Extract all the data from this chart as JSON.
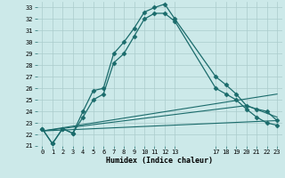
{
  "xlabel": "Humidex (Indice chaleur)",
  "bg_color": "#cce9e9",
  "grid_color": "#aacccc",
  "line_color": "#1a6b6b",
  "xlim": [
    -0.5,
    23.5
  ],
  "ylim": [
    21,
    33.5
  ],
  "yticks": [
    21,
    22,
    23,
    24,
    25,
    26,
    27,
    28,
    29,
    30,
    31,
    32,
    33
  ],
  "xticks": [
    0,
    1,
    2,
    3,
    4,
    5,
    6,
    7,
    8,
    9,
    10,
    11,
    12,
    13,
    17,
    18,
    19,
    20,
    21,
    22,
    23
  ],
  "series": [
    {
      "x": [
        0,
        1,
        2,
        3,
        4,
        5,
        6,
        7,
        8,
        9,
        10,
        11,
        12,
        13,
        17,
        18,
        19,
        20,
        21,
        22,
        23
      ],
      "y": [
        22.5,
        21.2,
        22.5,
        22.1,
        24.0,
        25.8,
        26.0,
        29.0,
        30.0,
        31.2,
        32.6,
        33.0,
        33.3,
        32.0,
        27.0,
        26.3,
        25.5,
        24.5,
        24.2,
        24.0,
        23.2
      ],
      "marker": "D",
      "markersize": 2.5,
      "linewidth": 0.9
    },
    {
      "x": [
        0,
        1,
        2,
        3,
        4,
        5,
        6,
        7,
        8,
        9,
        10,
        11,
        12,
        13,
        17,
        18,
        19,
        20,
        21,
        22,
        23
      ],
      "y": [
        22.5,
        21.2,
        22.5,
        22.1,
        23.5,
        25.0,
        25.5,
        28.2,
        29.0,
        30.5,
        32.0,
        32.5,
        32.5,
        31.8,
        26.0,
        25.5,
        25.0,
        24.2,
        23.5,
        23.0,
        22.8
      ],
      "marker": "D",
      "markersize": 2.5,
      "linewidth": 0.9
    },
    {
      "x": [
        0,
        23
      ],
      "y": [
        22.3,
        25.5
      ],
      "marker": null,
      "markersize": 0,
      "linewidth": 0.8
    },
    {
      "x": [
        0,
        20,
        23
      ],
      "y": [
        22.3,
        24.5,
        23.5
      ],
      "marker": null,
      "markersize": 0,
      "linewidth": 0.8
    },
    {
      "x": [
        0,
        23
      ],
      "y": [
        22.3,
        23.2
      ],
      "marker": null,
      "markersize": 0,
      "linewidth": 0.8
    }
  ]
}
